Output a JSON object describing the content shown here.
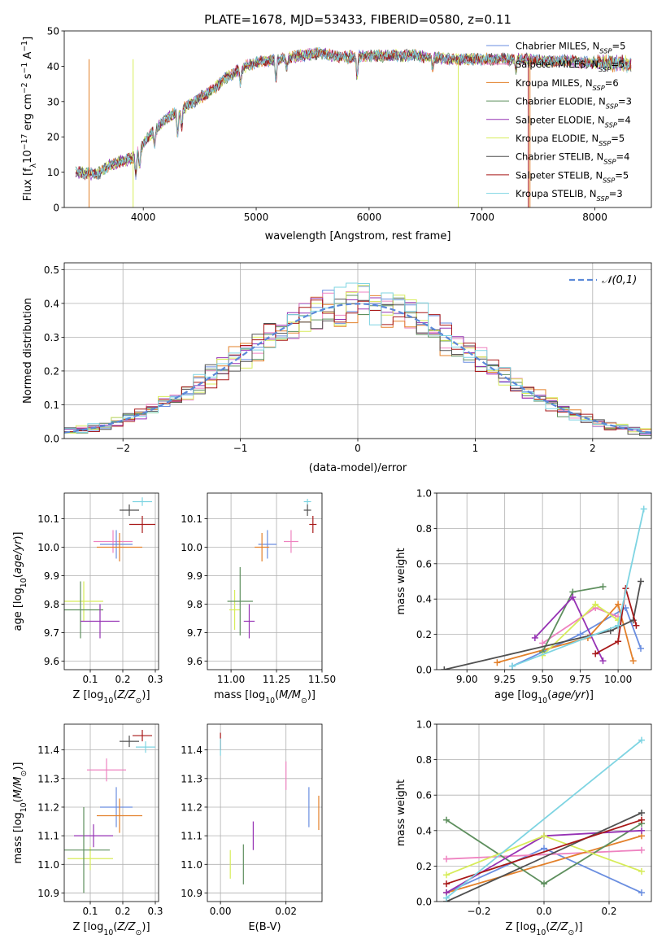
{
  "chart_data": [
    {
      "id": "spectrum",
      "type": "line",
      "title": "PLATE=1678, MJD=53433, FIBERID=0580, z=0.11",
      "xlabel": "wavelength [Angstrom, rest frame]",
      "ylabel": "Flux [f_λ10^-17 erg cm^-2 s^-1 A^-1]",
      "xlim": [
        3300,
        8500
      ],
      "ylim": [
        0,
        50
      ],
      "xticks": [
        4000,
        5000,
        6000,
        7000,
        8000
      ],
      "yticks": [
        0,
        10,
        20,
        30,
        40,
        50
      ],
      "grid": false,
      "legend_position": "right",
      "series": [
        {
          "name": "Chabrier MILES, N_SSP=5",
          "color": "#6a8ee0"
        },
        {
          "name": "Salpeter MILES, N_SSP=5",
          "color": "#ee82c0"
        },
        {
          "name": "Kroupa MILES, N_SSP=6",
          "color": "#e3802a"
        },
        {
          "name": "Chabrier ELODIE, N_SSP=3",
          "color": "#5e8f5e"
        },
        {
          "name": "Salpeter ELODIE, N_SSP=4",
          "color": "#9632b4"
        },
        {
          "name": "Kroupa ELODIE, N_SSP=5",
          "color": "#d7ec5a"
        },
        {
          "name": "Chabrier STELIB, N_SSP=4",
          "color": "#505050"
        },
        {
          "name": "Salpeter STELIB, N_SSP=5",
          "color": "#a81818"
        },
        {
          "name": "Kroupa STELIB, N_SSP=3",
          "color": "#7ed4e2"
        }
      ],
      "continuum": {
        "x": [
          3400,
          3600,
          3700,
          3800,
          3900,
          4000,
          4100,
          4200,
          4300,
          4400,
          4500,
          4600,
          4700,
          4800,
          4900,
          5000,
          5100,
          5200,
          5300,
          5400,
          5500,
          5600,
          5700,
          5800,
          5900,
          6000,
          6100,
          6200,
          6300,
          6400,
          6500,
          6600,
          6700,
          6800,
          6900,
          7000,
          7100,
          7200,
          7300,
          7400,
          7500,
          7600,
          7700,
          7800,
          7900,
          8000,
          8100,
          8200,
          8300
        ],
        "y": [
          10,
          9.5,
          12,
          13,
          14,
          18,
          22,
          25,
          27,
          29,
          31,
          33,
          36,
          38,
          40,
          41,
          41.5,
          42,
          42.5,
          43,
          43.5,
          43.5,
          43,
          42.5,
          43,
          43,
          43,
          43,
          43,
          43,
          42.5,
          42.5,
          42,
          42,
          42,
          42,
          42,
          42,
          42,
          42,
          41.5,
          41.5,
          41.5,
          41.5,
          41,
          41,
          41,
          41,
          40.5
        ]
      },
      "absorption_lines": [
        {
          "x": 3934,
          "depth": 6
        },
        {
          "x": 3969,
          "depth": 5
        },
        {
          "x": 4101,
          "depth": 4
        },
        {
          "x": 4304,
          "depth": 7
        },
        {
          "x": 4340,
          "depth": 5
        },
        {
          "x": 4861,
          "depth": 4
        },
        {
          "x": 5175,
          "depth": 6
        },
        {
          "x": 5270,
          "depth": 3
        },
        {
          "x": 5894,
          "depth": 6
        },
        {
          "x": 6563,
          "depth": 3
        },
        {
          "x": 7300,
          "depth": 3
        }
      ],
      "dropouts": [
        {
          "series": "Kroupa MILES, N_SSP=6",
          "color": "#e3802a",
          "x": [
            3520,
            7425
          ]
        },
        {
          "series": "Kroupa ELODIE, N_SSP=5",
          "color": "#d7ec5a",
          "x": [
            3910,
            6790
          ]
        },
        {
          "series": "Salpeter STELIB, N_SSP=5",
          "color": "#a81818",
          "x": [
            7410
          ]
        }
      ]
    },
    {
      "id": "residuals",
      "type": "line",
      "xlabel": "(data-model)/error",
      "ylabel": "Normed distribution",
      "xlim": [
        -2.5,
        2.5
      ],
      "ylim": [
        0,
        0.52
      ],
      "xticks": [
        -2,
        -1,
        0,
        1,
        2
      ],
      "yticks": [
        0.0,
        0.1,
        0.2,
        0.3,
        0.4,
        0.5
      ],
      "grid": true,
      "legend_position": "upper right",
      "reference": {
        "name": "𝒩(0,1)",
        "color": "#5a88d8",
        "style": "dashed"
      },
      "bin_width": 0.1,
      "histogram_colors": [
        "#6a8ee0",
        "#ee82c0",
        "#e3802a",
        "#5e8f5e",
        "#9632b4",
        "#d7ec5a",
        "#505050",
        "#a81818",
        "#7ed4e2"
      ]
    },
    {
      "id": "age-vs-z",
      "type": "scatter",
      "xlabel": "Z [log10(Z/Z⊙)]",
      "ylabel": "age  [log10(age/yr)]",
      "xlim": [
        0.02,
        0.31
      ],
      "ylim": [
        9.57,
        10.19
      ],
      "xticks": [
        0.1,
        0.2,
        0.3
      ],
      "yticks": [
        9.6,
        9.7,
        9.8,
        9.9,
        10.0,
        10.1
      ],
      "grid": true,
      "points": [
        {
          "x": 0.22,
          "y": 10.13,
          "xerr": 0.03,
          "yerr": 0.02,
          "color": "#505050"
        },
        {
          "x": 0.26,
          "y": 10.16,
          "xerr": 0.03,
          "yerr": 0.015,
          "color": "#7ed4e2"
        },
        {
          "x": 0.26,
          "y": 10.08,
          "xerr": 0.04,
          "yerr": 0.03,
          "color": "#a81818"
        },
        {
          "x": 0.17,
          "y": 10.02,
          "xerr": 0.06,
          "yerr": 0.04,
          "color": "#ee82c0"
        },
        {
          "x": 0.18,
          "y": 10.01,
          "xerr": 0.05,
          "yerr": 0.05,
          "color": "#6a8ee0"
        },
        {
          "x": 0.19,
          "y": 10.0,
          "xerr": 0.07,
          "yerr": 0.05,
          "color": "#e3802a"
        },
        {
          "x": 0.08,
          "y": 9.81,
          "xerr": 0.06,
          "yerr": 0.07,
          "color": "#d7ec5a"
        },
        {
          "x": 0.07,
          "y": 9.78,
          "xerr": 0.07,
          "yerr": 0.1,
          "color": "#5e8f5e"
        },
        {
          "x": 0.13,
          "y": 9.74,
          "xerr": 0.06,
          "yerr": 0.06,
          "color": "#9632b4"
        }
      ]
    },
    {
      "id": "age-vs-mass",
      "type": "scatter",
      "xlabel": "mass [log10(M/M⊙)]",
      "ylabel": "",
      "xlim": [
        10.87,
        11.5
      ],
      "ylim": [
        9.57,
        10.19
      ],
      "xticks": [
        11.0,
        11.25,
        11.5
      ],
      "yticks": [
        9.6,
        9.7,
        9.8,
        9.9,
        10.0,
        10.1
      ],
      "grid": true,
      "points": [
        {
          "x": 11.42,
          "y": 10.13,
          "xerr": 0.02,
          "yerr": 0.02,
          "color": "#505050"
        },
        {
          "x": 11.42,
          "y": 10.16,
          "xerr": 0.02,
          "yerr": 0.01,
          "color": "#7ed4e2"
        },
        {
          "x": 11.45,
          "y": 10.08,
          "xerr": 0.02,
          "yerr": 0.03,
          "color": "#a81818"
        },
        {
          "x": 11.33,
          "y": 10.02,
          "xerr": 0.04,
          "yerr": 0.04,
          "color": "#ee82c0"
        },
        {
          "x": 11.2,
          "y": 10.01,
          "xerr": 0.05,
          "yerr": 0.05,
          "color": "#6a8ee0"
        },
        {
          "x": 11.17,
          "y": 10.0,
          "xerr": 0.04,
          "yerr": 0.05,
          "color": "#e3802a"
        },
        {
          "x": 11.02,
          "y": 9.78,
          "xerr": 0.03,
          "yerr": 0.07,
          "color": "#d7ec5a"
        },
        {
          "x": 11.05,
          "y": 9.81,
          "xerr": 0.07,
          "yerr": 0.12,
          "color": "#5e8f5e"
        },
        {
          "x": 11.1,
          "y": 9.74,
          "xerr": 0.03,
          "yerr": 0.06,
          "color": "#9632b4"
        }
      ]
    },
    {
      "id": "weight-vs-age",
      "type": "line",
      "xlabel": "age  [log10(age/yr)]",
      "ylabel": "mass weight",
      "xlim": [
        8.8,
        10.22
      ],
      "ylim": [
        0,
        1.0
      ],
      "xticks": [
        9.0,
        9.25,
        9.5,
        9.75,
        10.0
      ],
      "yticks": [
        0.0,
        0.2,
        0.4,
        0.6,
        0.8,
        1.0
      ],
      "grid": true,
      "series": [
        {
          "color": "#6a8ee0",
          "x": [
            9.3,
            9.75,
            10.05,
            10.15
          ],
          "y": [
            0.02,
            0.2,
            0.35,
            0.12
          ]
        },
        {
          "color": "#ee82c0",
          "x": [
            9.5,
            9.85,
            10.0
          ],
          "y": [
            0.15,
            0.35,
            0.3
          ]
        },
        {
          "color": "#e3802a",
          "x": [
            9.2,
            9.8,
            10.0,
            10.1
          ],
          "y": [
            0.04,
            0.18,
            0.37,
            0.05
          ]
        },
        {
          "color": "#5e8f5e",
          "x": [
            9.5,
            9.7,
            9.9
          ],
          "y": [
            0.1,
            0.44,
            0.47
          ]
        },
        {
          "color": "#9632b4",
          "x": [
            9.45,
            9.7,
            9.9
          ],
          "y": [
            0.18,
            0.41,
            0.05
          ]
        },
        {
          "color": "#d7ec5a",
          "x": [
            9.5,
            9.85,
            10.0
          ],
          "y": [
            0.08,
            0.37,
            0.28
          ]
        },
        {
          "color": "#505050",
          "x": [
            8.85,
            9.95,
            10.1,
            10.15
          ],
          "y": [
            0.0,
            0.22,
            0.28,
            0.5
          ]
        },
        {
          "color": "#a81818",
          "x": [
            9.85,
            10.0,
            10.05,
            10.12
          ],
          "y": [
            0.09,
            0.16,
            0.46,
            0.25
          ]
        },
        {
          "color": "#7ed4e2",
          "x": [
            9.3,
            10.0,
            10.17
          ],
          "y": [
            0.02,
            0.25,
            0.91
          ]
        }
      ]
    },
    {
      "id": "mass-vs-z",
      "type": "scatter",
      "xlabel": "Z [log10(Z/Z⊙)]",
      "ylabel": "mass [log10(M/M⊙)]",
      "xlim": [
        0.02,
        0.31
      ],
      "ylim": [
        10.87,
        11.49
      ],
      "xticks": [
        0.1,
        0.2,
        0.3
      ],
      "yticks": [
        10.9,
        11.0,
        11.1,
        11.2,
        11.3,
        11.4
      ],
      "grid": true,
      "points": [
        {
          "x": 0.22,
          "y": 11.43,
          "xerr": 0.03,
          "yerr": 0.02,
          "color": "#505050"
        },
        {
          "x": 0.27,
          "y": 11.41,
          "xerr": 0.03,
          "yerr": 0.02,
          "color": "#7ed4e2"
        },
        {
          "x": 0.26,
          "y": 11.45,
          "xerr": 0.03,
          "yerr": 0.02,
          "color": "#a81818"
        },
        {
          "x": 0.15,
          "y": 11.33,
          "xerr": 0.06,
          "yerr": 0.04,
          "color": "#ee82c0"
        },
        {
          "x": 0.18,
          "y": 11.2,
          "xerr": 0.05,
          "yerr": 0.07,
          "color": "#6a8ee0"
        },
        {
          "x": 0.19,
          "y": 11.17,
          "xerr": 0.07,
          "yerr": 0.06,
          "color": "#e3802a"
        },
        {
          "x": 0.11,
          "y": 11.1,
          "xerr": 0.06,
          "yerr": 0.04,
          "color": "#9632b4"
        },
        {
          "x": 0.1,
          "y": 11.02,
          "xerr": 0.07,
          "yerr": 0.04,
          "color": "#d7ec5a"
        },
        {
          "x": 0.08,
          "y": 11.05,
          "xerr": 0.08,
          "yerr": 0.15,
          "color": "#5e8f5e"
        }
      ]
    },
    {
      "id": "mass-vs-ebv",
      "type": "scatter",
      "xlabel": "E(B-V)",
      "ylabel": "",
      "xlim": [
        -0.004,
        0.031
      ],
      "ylim": [
        10.87,
        11.49
      ],
      "xticks": [
        0.0,
        0.02
      ],
      "yticks": [
        10.9,
        11.0,
        11.1,
        11.2,
        11.3,
        11.4
      ],
      "grid": true,
      "points": [
        {
          "x": 0.0,
          "y": 11.43,
          "xerr": 0,
          "yerr": 0.03,
          "color": "#a81818"
        },
        {
          "x": 0.0,
          "y": 11.41,
          "xerr": 0,
          "yerr": 0.03,
          "color": "#7ed4e2"
        },
        {
          "x": 0.02,
          "y": 11.31,
          "xerr": 0,
          "yerr": 0.05,
          "color": "#ee82c0"
        },
        {
          "x": 0.027,
          "y": 11.2,
          "xerr": 0,
          "yerr": 0.07,
          "color": "#6a8ee0"
        },
        {
          "x": 0.03,
          "y": 11.18,
          "xerr": 0,
          "yerr": 0.06,
          "color": "#e3802a"
        },
        {
          "x": 0.01,
          "y": 11.1,
          "xerr": 0,
          "yerr": 0.05,
          "color": "#9632b4"
        },
        {
          "x": 0.003,
          "y": 11.0,
          "xerr": 0,
          "yerr": 0.05,
          "color": "#d7ec5a"
        },
        {
          "x": 0.007,
          "y": 11.0,
          "xerr": 0,
          "yerr": 0.07,
          "color": "#5e8f5e"
        }
      ]
    },
    {
      "id": "weight-vs-z",
      "type": "line",
      "xlabel": "Z [log10(Z/Z⊙)]",
      "ylabel": "mass weight",
      "xlim": [
        -0.33,
        0.33
      ],
      "ylim": [
        0,
        1.0
      ],
      "xticks": [
        -0.2,
        0.0,
        0.2
      ],
      "yticks": [
        0.0,
        0.2,
        0.4,
        0.6,
        0.8,
        1.0
      ],
      "grid": true,
      "series": [
        {
          "color": "#6a8ee0",
          "x": [
            -0.3,
            0.0,
            0.3
          ],
          "y": [
            0.05,
            0.3,
            0.05
          ]
        },
        {
          "color": "#ee82c0",
          "x": [
            -0.3,
            0.3
          ],
          "y": [
            0.24,
            0.29
          ]
        },
        {
          "color": "#e3802a",
          "x": [
            -0.3,
            0.3
          ],
          "y": [
            0.05,
            0.37
          ]
        },
        {
          "color": "#5e8f5e",
          "x": [
            -0.3,
            0.0,
            0.3
          ],
          "y": [
            0.46,
            0.1,
            0.44
          ]
        },
        {
          "color": "#9632b4",
          "x": [
            -0.3,
            0.0,
            0.3
          ],
          "y": [
            0.05,
            0.37,
            0.4
          ]
        },
        {
          "color": "#d7ec5a",
          "x": [
            -0.3,
            0.0,
            0.3
          ],
          "y": [
            0.15,
            0.37,
            0.17
          ]
        },
        {
          "color": "#505050",
          "x": [
            -0.3,
            0.3
          ],
          "y": [
            0.0,
            0.5
          ]
        },
        {
          "color": "#a81818",
          "x": [
            -0.3,
            0.3
          ],
          "y": [
            0.1,
            0.46
          ]
        },
        {
          "color": "#7ed4e2",
          "x": [
            -0.3,
            0.3
          ],
          "y": [
            0.02,
            0.91
          ]
        }
      ]
    }
  ]
}
